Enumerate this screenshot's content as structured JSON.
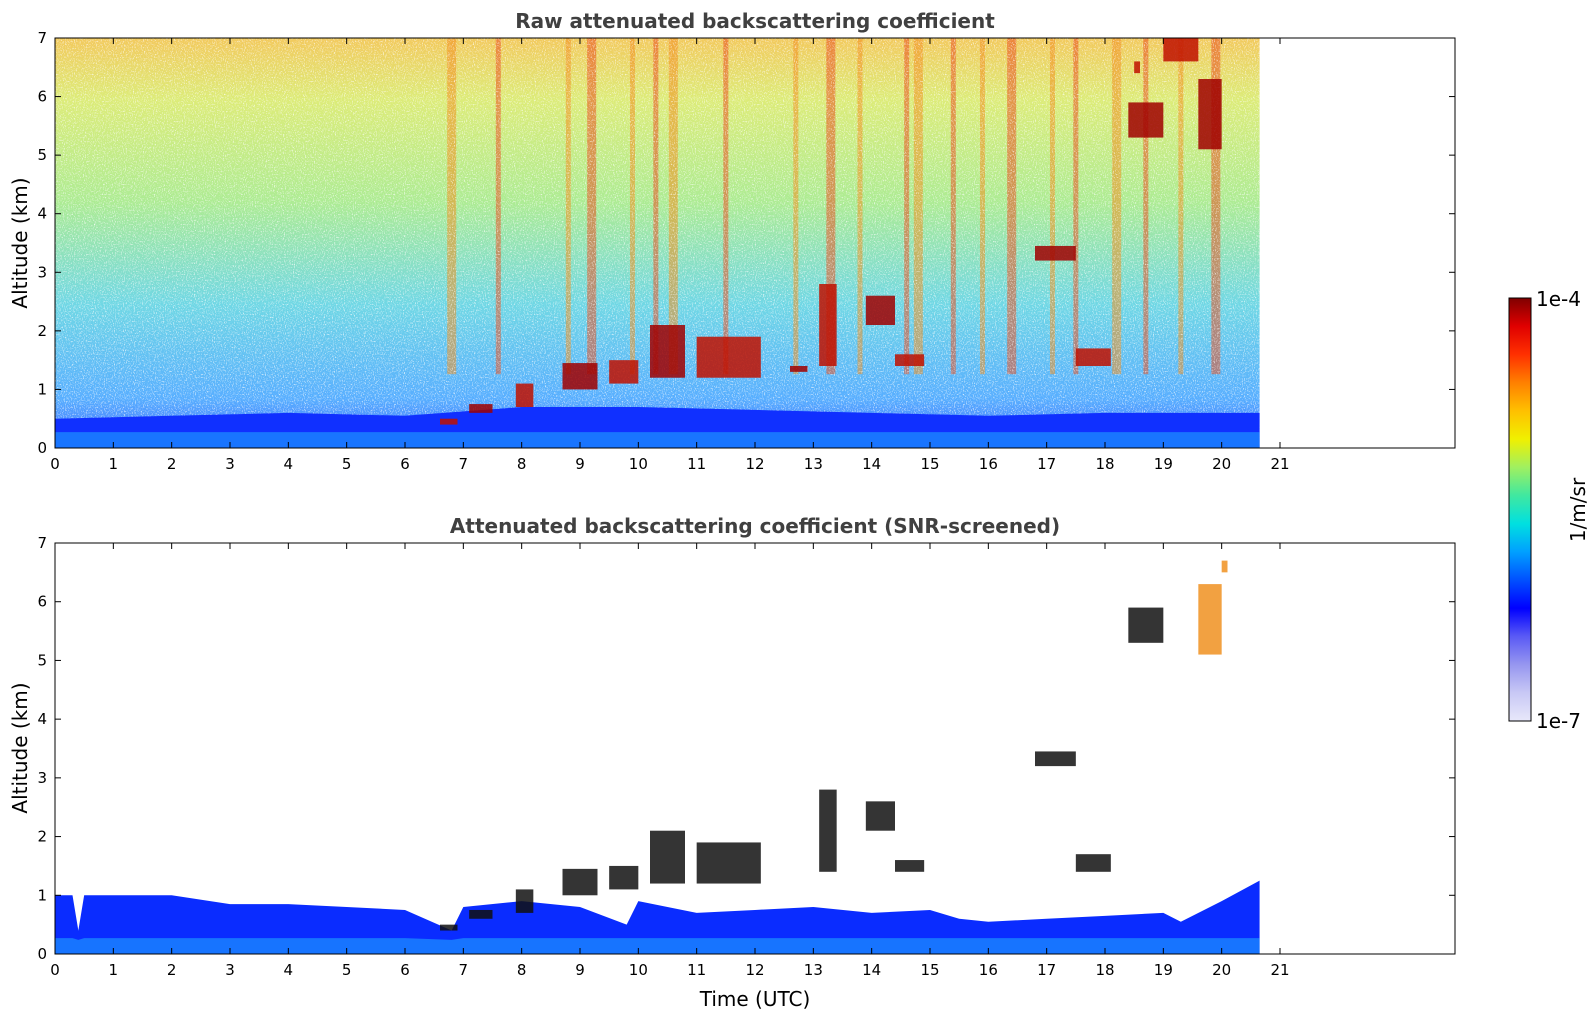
{
  "chart_data": [
    {
      "type": "heatmap",
      "title": "Raw attenuated backscattering coefficient",
      "xlabel": "",
      "ylabel": "Altitude (km)",
      "xlim": [
        0,
        24
      ],
      "ylim": [
        0,
        7
      ],
      "data_extent_x": [
        0,
        20.65
      ],
      "xticks": [
        "0",
        "1",
        "2",
        "3",
        "4",
        "5",
        "6",
        "7",
        "8",
        "9",
        "10",
        "11",
        "12",
        "13",
        "14",
        "15",
        "16",
        "17",
        "18",
        "19",
        "20",
        "21"
      ],
      "yticks": [
        "0",
        "1",
        "2",
        "3",
        "4",
        "5",
        "6",
        "7"
      ],
      "boundary_layer_top_km": [
        [
          0,
          0.5
        ],
        [
          2,
          0.55
        ],
        [
          4,
          0.6
        ],
        [
          6,
          0.55
        ],
        [
          8,
          0.7
        ],
        [
          10,
          0.7
        ],
        [
          12,
          0.65
        ],
        [
          14,
          0.6
        ],
        [
          16,
          0.55
        ],
        [
          18,
          0.6
        ],
        [
          20.65,
          0.6
        ]
      ],
      "high_signal_columns_utc": [
        6.8,
        7.6,
        8.8,
        9.2,
        9.9,
        10.3,
        10.6,
        11.5,
        12.7,
        13.3,
        13.8,
        14.6,
        14.8,
        15.4,
        15.9,
        16.4,
        17.1,
        17.5,
        18.2,
        18.7,
        19.3,
        19.9
      ],
      "cloud_features": [
        {
          "x": [
            6.6,
            6.9
          ],
          "y": [
            0.4,
            0.5
          ]
        },
        {
          "x": [
            7.1,
            7.5
          ],
          "y": [
            0.6,
            0.75
          ]
        },
        {
          "x": [
            7.9,
            8.2
          ],
          "y": [
            0.7,
            1.1
          ]
        },
        {
          "x": [
            8.7,
            9.3
          ],
          "y": [
            1.0,
            1.45
          ]
        },
        {
          "x": [
            9.5,
            10.0
          ],
          "y": [
            1.1,
            1.5
          ]
        },
        {
          "x": [
            10.2,
            10.8
          ],
          "y": [
            1.2,
            2.1
          ]
        },
        {
          "x": [
            11.0,
            12.1
          ],
          "y": [
            1.2,
            1.9
          ]
        },
        {
          "x": [
            12.6,
            12.9
          ],
          "y": [
            1.3,
            1.4
          ]
        },
        {
          "x": [
            13.1,
            13.4
          ],
          "y": [
            1.4,
            2.8
          ]
        },
        {
          "x": [
            13.9,
            14.4
          ],
          "y": [
            2.1,
            2.6
          ]
        },
        {
          "x": [
            14.4,
            14.9
          ],
          "y": [
            1.4,
            1.6
          ]
        },
        {
          "x": [
            16.8,
            17.5
          ],
          "y": [
            3.2,
            3.45
          ]
        },
        {
          "x": [
            17.5,
            18.1
          ],
          "y": [
            1.4,
            1.7
          ]
        },
        {
          "x": [
            18.4,
            19.0
          ],
          "y": [
            5.3,
            5.9
          ]
        },
        {
          "x": [
            18.5,
            18.6
          ],
          "y": [
            6.4,
            6.6
          ]
        },
        {
          "x": [
            19.6,
            20.0
          ],
          "y": [
            5.1,
            6.3
          ]
        },
        {
          "x": [
            19.0,
            19.6
          ],
          "y": [
            6.6,
            7.0
          ]
        }
      ]
    },
    {
      "type": "heatmap",
      "title": "Attenuated backscattering coefficient (SNR-screened)",
      "xlabel": "Time (UTC)",
      "ylabel": "Altitude (km)",
      "xlim": [
        0,
        24
      ],
      "ylim": [
        0,
        7
      ],
      "data_extent_x": [
        0,
        20.65
      ],
      "xticks": [
        "0",
        "1",
        "2",
        "3",
        "4",
        "5",
        "6",
        "7",
        "8",
        "9",
        "10",
        "11",
        "12",
        "13",
        "14",
        "15",
        "16",
        "17",
        "18",
        "19",
        "20",
        "21"
      ],
      "yticks": [
        "0",
        "1",
        "2",
        "3",
        "4",
        "5",
        "6",
        "7"
      ],
      "boundary_layer_top_km": [
        [
          0,
          1.0
        ],
        [
          0.3,
          1.0
        ],
        [
          0.4,
          0.4
        ],
        [
          0.5,
          1.0
        ],
        [
          2,
          1.0
        ],
        [
          3,
          0.85
        ],
        [
          4,
          0.85
        ],
        [
          5,
          0.8
        ],
        [
          6,
          0.75
        ],
        [
          6.8,
          0.4
        ],
        [
          7,
          0.8
        ],
        [
          8,
          0.9
        ],
        [
          9,
          0.8
        ],
        [
          9.8,
          0.5
        ],
        [
          10,
          0.9
        ],
        [
          11,
          0.7
        ],
        [
          12,
          0.75
        ],
        [
          13,
          0.8
        ],
        [
          14,
          0.7
        ],
        [
          15,
          0.75
        ],
        [
          15.5,
          0.6
        ],
        [
          16,
          0.55
        ],
        [
          17,
          0.6
        ],
        [
          18,
          0.65
        ],
        [
          19,
          0.7
        ],
        [
          19.3,
          0.55
        ],
        [
          20,
          0.9
        ],
        [
          20.65,
          1.25
        ]
      ],
      "cloud_features": [
        {
          "x": [
            6.6,
            6.9
          ],
          "y": [
            0.4,
            0.5
          ]
        },
        {
          "x": [
            7.1,
            7.5
          ],
          "y": [
            0.6,
            0.75
          ]
        },
        {
          "x": [
            7.9,
            8.2
          ],
          "y": [
            0.7,
            1.1
          ]
        },
        {
          "x": [
            8.7,
            9.3
          ],
          "y": [
            1.0,
            1.45
          ]
        },
        {
          "x": [
            9.5,
            10.0
          ],
          "y": [
            1.1,
            1.5
          ]
        },
        {
          "x": [
            10.2,
            10.8
          ],
          "y": [
            1.2,
            2.1
          ]
        },
        {
          "x": [
            11.0,
            12.1
          ],
          "y": [
            1.2,
            1.9
          ]
        },
        {
          "x": [
            13.1,
            13.4
          ],
          "y": [
            1.4,
            2.8
          ]
        },
        {
          "x": [
            13.9,
            14.4
          ],
          "y": [
            2.1,
            2.6
          ]
        },
        {
          "x": [
            14.4,
            14.9
          ],
          "y": [
            1.4,
            1.6
          ]
        },
        {
          "x": [
            16.8,
            17.5
          ],
          "y": [
            3.2,
            3.45
          ]
        },
        {
          "x": [
            17.5,
            18.1
          ],
          "y": [
            1.4,
            1.7
          ]
        },
        {
          "x": [
            18.4,
            19.0
          ],
          "y": [
            5.3,
            5.9
          ]
        },
        {
          "x": [
            19.6,
            20.0
          ],
          "y": [
            5.1,
            6.3
          ]
        },
        {
          "x": [
            20.0,
            20.1
          ],
          "y": [
            6.5,
            6.7
          ]
        }
      ]
    }
  ],
  "colorbar": {
    "label": "1/m/sr",
    "min_label": "1e-7",
    "max_label": "1e-4",
    "scale": "log",
    "min": 1e-07,
    "max": 0.0001,
    "colors": [
      "#e8e8fa",
      "#c8c8f5",
      "#9696f0",
      "#5a5af5",
      "#0000ff",
      "#0050ff",
      "#00a0ff",
      "#00e0e0",
      "#40e8a0",
      "#a0f060",
      "#f0f000",
      "#ffc000",
      "#ff8000",
      "#ff3000",
      "#e00000",
      "#800000"
    ]
  },
  "colors": {
    "axis": "#000000",
    "title": "#404040",
    "cloud_core": "#000000"
  }
}
